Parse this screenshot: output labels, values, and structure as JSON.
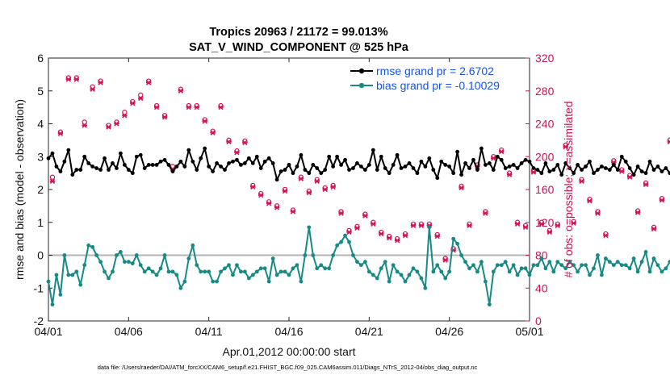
{
  "chart_data": {
    "type": "line",
    "title": "Tropics 20963 / 21172 = 99.013%",
    "subtitle": "SAT_V_WIND_COMPONENT @ 525 hPa",
    "xlabel": "Apr.01,2012 00:00:00 start",
    "ylabel": "rmse and bias (model - observation)",
    "y2label": "# of obs: o=possible; ×=assimilated",
    "footer": "data file: /Users/raeder/DAI/ATM_forcXX/CAM6_setup/f.e21.FHIST_BGC.f09_025.CAM6assim.011/Diags_NTrS_2012-04/obs_diag_output.nc",
    "x_ticks": [
      "04/01",
      "04/06",
      "04/11",
      "04/16",
      "04/21",
      "04/26",
      "05/01"
    ],
    "xlim": [
      0,
      30
    ],
    "ylim": [
      -2,
      6
    ],
    "y_ticks": [
      "-2",
      "-1",
      "0",
      "1",
      "2",
      "3",
      "4",
      "5",
      "6"
    ],
    "y2lim": [
      0,
      320
    ],
    "y2_ticks": [
      "0",
      "40",
      "80",
      "120",
      "160",
      "200",
      "240",
      "280",
      "320"
    ],
    "legend": [
      "rmse grand pr = 2.6702",
      "bias grand pr = -0.10029"
    ],
    "colors": {
      "rmse": "#000000",
      "bias": "#178a84",
      "counts": "#d4145a",
      "legend_text": "#1553e6",
      "zero_line": "#b4b4b4"
    },
    "x_step_days": 0.25,
    "series": [
      {
        "name": "rmse",
        "values": [
          2.95,
          3.1,
          2.7,
          2.55,
          2.85,
          3.2,
          2.45,
          2.6,
          2.6,
          3.0,
          2.8,
          2.7,
          2.65,
          2.6,
          2.95,
          2.6,
          2.8,
          2.65,
          3.1,
          2.75,
          2.6,
          2.5,
          3.0,
          3.05,
          2.65,
          2.75,
          2.75,
          2.75,
          2.85,
          2.9,
          2.75,
          2.55,
          2.7,
          2.85,
          2.7,
          3.2,
          2.85,
          2.6,
          2.95,
          3.25,
          2.7,
          2.55,
          2.8,
          2.7,
          2.6,
          2.8,
          2.85,
          2.9,
          2.75,
          2.8,
          2.95,
          2.8,
          3.0,
          2.65,
          2.85,
          2.95,
          2.8,
          2.3,
          2.55,
          2.6,
          2.75,
          2.5,
          2.7,
          3.05,
          2.6,
          2.5,
          2.75,
          2.65,
          2.5,
          2.6,
          3.0,
          2.7,
          3.0,
          2.75,
          2.9,
          2.6,
          2.65,
          2.8,
          2.7,
          2.6,
          2.75,
          3.2,
          2.6,
          3.0,
          2.65,
          2.5,
          2.75,
          3.05,
          2.65,
          2.7,
          2.8,
          2.65,
          2.5,
          2.85,
          2.7,
          2.95,
          2.6,
          2.35,
          2.85,
          2.75,
          2.7,
          2.5,
          3.15,
          2.45,
          2.8,
          2.65,
          2.9,
          2.6,
          3.25,
          2.75,
          2.8,
          2.6,
          3.0,
          2.9,
          2.65,
          2.7,
          2.75,
          2.65,
          2.8,
          2.9,
          2.85,
          2.65,
          2.6,
          2.5,
          2.8,
          2.55,
          2.6,
          2.75,
          2.45,
          2.8,
          2.65,
          2.5,
          2.75,
          2.6,
          2.7,
          2.85,
          2.5,
          2.6,
          2.7,
          2.65,
          2.6,
          2.75,
          2.6,
          3.0,
          2.85,
          2.65,
          2.45,
          2.7,
          2.55,
          2.5,
          2.85,
          2.6,
          2.7,
          2.55,
          2.65,
          2.5,
          2.75,
          2.8,
          2.6,
          2.35,
          2.45,
          2.65,
          2.75,
          2.6,
          2.5,
          2.55,
          2.8,
          2.95,
          2.6,
          2.7,
          2.55,
          2.85,
          2.65,
          2.7,
          3.0,
          2.85,
          2.75,
          2.6,
          2.45,
          2.6,
          2.5,
          2.75,
          2.4,
          2.6,
          2.75,
          2.55,
          2.45,
          2.7,
          2.6,
          2.45,
          2.95,
          2.7,
          2.6,
          2.4,
          2.65,
          2.55,
          2.7,
          2.5,
          2.4,
          2.6,
          2.85,
          2.6,
          2.55,
          2.7,
          2.6,
          2.5,
          2.75,
          2.65,
          2.5,
          2.55,
          2.6,
          2.7,
          2.95,
          2.6,
          2.8,
          2.9,
          2.75,
          2.7,
          2.95,
          3.05,
          2.7,
          2.65,
          2.95,
          2.6,
          2.5,
          2.85,
          2.6,
          2.55,
          2.45,
          2.4,
          2.35,
          2.25
        ]
      },
      {
        "name": "bias",
        "values": [
          -0.8,
          -1.5,
          -0.6,
          -1.2,
          0.0,
          -0.6,
          -0.6,
          -0.5,
          -0.9,
          -0.3,
          0.3,
          0.25,
          0.0,
          -0.2,
          -0.5,
          -0.7,
          -0.5,
          0.0,
          0.1,
          -0.2,
          -0.2,
          -0.25,
          0.0,
          -0.3,
          -0.5,
          -0.4,
          -0.5,
          -0.6,
          -0.4,
          0.0,
          -0.5,
          -0.5,
          -0.6,
          -1.0,
          -0.8,
          -0.1,
          0.3,
          -0.3,
          -0.5,
          -0.5,
          -0.5,
          -0.8,
          -0.8,
          -0.5,
          -0.4,
          -0.3,
          -0.6,
          -0.3,
          -0.5,
          -0.5,
          -0.7,
          -0.6,
          -0.5,
          -0.4,
          -0.4,
          -0.8,
          -0.1,
          -0.6,
          -0.5,
          -0.5,
          -0.6,
          -0.4,
          -0.3,
          -0.8,
          0.0,
          0.85,
          0.0,
          -0.4,
          -0.3,
          -0.4,
          -0.4,
          0.0,
          0.3,
          0.4,
          0.6,
          0.4,
          0.0,
          -0.2,
          -0.3,
          -0.2,
          -0.5,
          -0.6,
          -0.7,
          -0.4,
          -0.2,
          -0.8,
          -0.3,
          -0.5,
          -0.6,
          -0.8,
          -0.6,
          -0.4,
          -0.5,
          -0.7,
          -1.0,
          0.85,
          -0.5,
          -0.3,
          -0.5,
          -0.7,
          -0.5,
          0.5,
          0.35,
          0.0,
          -0.2,
          -0.4,
          -0.3,
          -0.5,
          -0.2,
          -0.8,
          -1.5,
          -0.5,
          -0.3,
          -0.3,
          -0.2,
          -0.5,
          -0.3,
          -0.6,
          -0.4,
          -0.4,
          -0.6,
          -0.3,
          -0.3,
          -0.1,
          -0.4,
          -0.2,
          -0.5,
          -0.2,
          -0.3,
          -0.4,
          -0.2,
          -0.3,
          -0.5,
          -0.3,
          -0.3,
          -0.6,
          -0.4,
          0.0,
          -0.6,
          -0.1,
          -0.2,
          -0.3,
          -0.2,
          -0.3,
          -0.3,
          -0.4,
          -0.1,
          -0.5,
          -0.2,
          0.1,
          -0.5,
          -0.1,
          -0.3,
          -0.5,
          -0.4,
          -0.2,
          -0.3,
          -0.4,
          -0.6,
          -0.2,
          -0.1,
          -0.4,
          -0.2,
          -0.3,
          -0.5,
          -0.4,
          -0.3,
          -0.4,
          -0.2,
          -0.2,
          0.2,
          -0.3,
          0.1,
          0.5,
          -0.2,
          0.2,
          -0.4,
          -0.2,
          -0.5,
          -0.1,
          -0.3,
          -0.2,
          0.2,
          -0.1,
          -0.3,
          -0.3,
          0.1,
          -0.2,
          -0.6,
          -0.1,
          0.1,
          -0.2,
          -0.3,
          -0.5,
          -0.2,
          -0.4,
          -0.2,
          -0.1,
          -0.4,
          -0.2,
          -0.3,
          -0.3,
          -0.2,
          -0.3,
          0.1,
          -0.2,
          -0.3,
          -0.8,
          0.3,
          -0.3,
          -0.2,
          0.6,
          0.6,
          0.5,
          0.1,
          0.4,
          1.1,
          0.2,
          -0.3,
          0.6,
          1.3,
          0.8,
          0.4,
          0.6,
          0.5,
          0.0,
          0.4,
          0.5,
          0.0,
          -0.1,
          -0.1,
          0.1,
          0.0,
          0.0,
          0.0,
          -0.1,
          -0.1,
          -0.05
        ]
      },
      {
        "name": "obs count",
        "axis": "right",
        "x_step_days": 0.5,
        "possible": [
          175,
          230,
          296,
          296,
          242,
          285,
          292,
          238,
          242,
          254,
          267,
          275,
          292,
          262,
          250,
          188,
          282,
          262,
          262,
          245,
          231,
          262,
          220,
          207,
          219,
          165,
          155,
          145,
          140,
          160,
          135,
          175,
          158,
          172,
          162,
          165,
          133,
          110,
          115,
          130,
          120,
          108,
          103,
          100,
          106,
          118,
          118,
          118,
          105,
          76,
          88,
          164,
          118,
          190,
          133,
          200,
          208,
          180,
          120,
          116,
          183,
          120,
          110,
          118,
          214,
          121,
          172,
          148,
          133,
          106,
          195,
          184,
          177,
          134,
          168,
          114,
          149,
          220,
          140,
          140,
          140,
          162,
          117,
          142,
          104,
          113,
          109,
          195,
          151,
          124,
          140,
          166,
          201,
          232,
          183
        ],
        "assimilated": [
          170,
          228,
          294,
          294,
          238,
          282,
          290,
          236,
          240,
          250,
          265,
          271,
          290,
          260,
          248,
          185,
          280,
          260,
          260,
          243,
          229,
          260,
          218,
          205,
          217,
          163,
          153,
          143,
          138,
          158,
          133,
          173,
          156,
          170,
          160,
          163,
          131,
          108,
          113,
          128,
          118,
          106,
          101,
          98,
          104,
          116,
          116,
          116,
          103,
          74,
          86,
          162,
          116,
          188,
          131,
          198,
          206,
          178,
          118,
          114,
          181,
          118,
          108,
          116,
          212,
          119,
          170,
          146,
          131,
          104,
          193,
          182,
          175,
          132,
          166,
          112,
          147,
          218,
          138,
          138,
          138,
          160,
          115,
          140,
          102,
          111,
          107,
          193,
          149,
          122,
          138,
          164,
          199,
          230,
          181
        ]
      }
    ]
  }
}
